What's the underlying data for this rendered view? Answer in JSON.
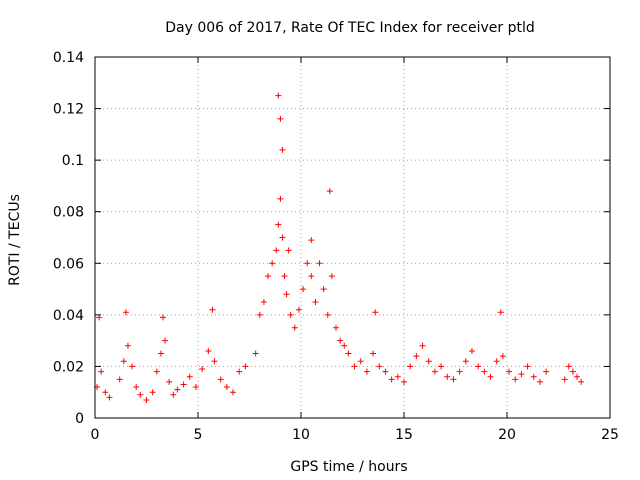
{
  "chart_data": {
    "type": "scatter",
    "title": "Day 006 of 2017, Rate Of TEC Index for receiver ptld",
    "xlabel": "GPS time / hours",
    "ylabel": "ROTI / TECUs",
    "xlim": [
      0,
      25
    ],
    "ylim": [
      0,
      0.14
    ],
    "xticks": [
      0,
      5,
      10,
      15,
      20,
      25
    ],
    "xtick_labels": [
      "0",
      "5",
      "10",
      "15",
      "20",
      "25"
    ],
    "yticks": [
      0,
      0.02,
      0.04,
      0.06,
      0.08,
      0.1,
      0.12,
      0.14
    ],
    "ytick_labels": [
      "0",
      "0.02",
      "0.04",
      "0.06",
      "0.08",
      "0.1",
      "0.12",
      "0.14"
    ],
    "grid": true,
    "marker": "+",
    "color": "#ff0000",
    "series": [
      {
        "name": "ROTI",
        "x": [
          0.1,
          0.3,
          0.5,
          0.7,
          1.2,
          1.4,
          1.6,
          1.8,
          2.0,
          2.2,
          2.5,
          2.8,
          3.0,
          3.2,
          3.4,
          3.6,
          3.8,
          4.0,
          4.3,
          4.6,
          4.9,
          5.2,
          5.5,
          5.8,
          6.1,
          6.4,
          6.7,
          7.0,
          7.3,
          7.8,
          8.0,
          8.2,
          8.4,
          8.6,
          8.8,
          8.9,
          9.0,
          9.1,
          9.2,
          9.3,
          9.5,
          9.7,
          9.9,
          10.1,
          10.3,
          10.5,
          10.7,
          10.9,
          11.1,
          11.3,
          11.5,
          11.7,
          11.9,
          12.1,
          12.3,
          12.6,
          12.9,
          13.2,
          13.5,
          13.8,
          14.1,
          14.4,
          14.7,
          15.0,
          15.3,
          15.6,
          15.9,
          16.2,
          16.5,
          16.8,
          17.1,
          17.4,
          17.7,
          18.0,
          18.3,
          18.6,
          18.9,
          19.2,
          19.5,
          19.8,
          20.1,
          20.4,
          20.7,
          21.0,
          21.3,
          21.6,
          21.9,
          22.8,
          23.0,
          23.2,
          23.4,
          23.6,
          0.2,
          1.5,
          3.3,
          5.7,
          8.9,
          9.0,
          9.1,
          11.4,
          9.4,
          10.5,
          19.7,
          13.6
        ],
        "y": [
          0.012,
          0.018,
          0.01,
          0.008,
          0.015,
          0.022,
          0.028,
          0.02,
          0.012,
          0.009,
          0.007,
          0.01,
          0.018,
          0.025,
          0.03,
          0.014,
          0.009,
          0.011,
          0.013,
          0.016,
          0.012,
          0.019,
          0.026,
          0.022,
          0.015,
          0.012,
          0.01,
          0.018,
          0.02,
          0.025,
          0.04,
          0.045,
          0.055,
          0.06,
          0.065,
          0.075,
          0.085,
          0.07,
          0.055,
          0.048,
          0.04,
          0.035,
          0.042,
          0.05,
          0.06,
          0.055,
          0.045,
          0.06,
          0.05,
          0.04,
          0.055,
          0.035,
          0.03,
          0.028,
          0.025,
          0.02,
          0.022,
          0.018,
          0.025,
          0.02,
          0.018,
          0.015,
          0.016,
          0.014,
          0.02,
          0.024,
          0.028,
          0.022,
          0.018,
          0.02,
          0.016,
          0.015,
          0.018,
          0.022,
          0.026,
          0.02,
          0.018,
          0.016,
          0.022,
          0.024,
          0.018,
          0.015,
          0.017,
          0.02,
          0.016,
          0.014,
          0.018,
          0.015,
          0.02,
          0.018,
          0.016,
          0.014,
          0.039,
          0.041,
          0.039,
          0.042,
          0.125,
          0.116,
          0.104,
          0.088,
          0.065,
          0.069,
          0.041,
          0.041
        ]
      }
    ]
  }
}
